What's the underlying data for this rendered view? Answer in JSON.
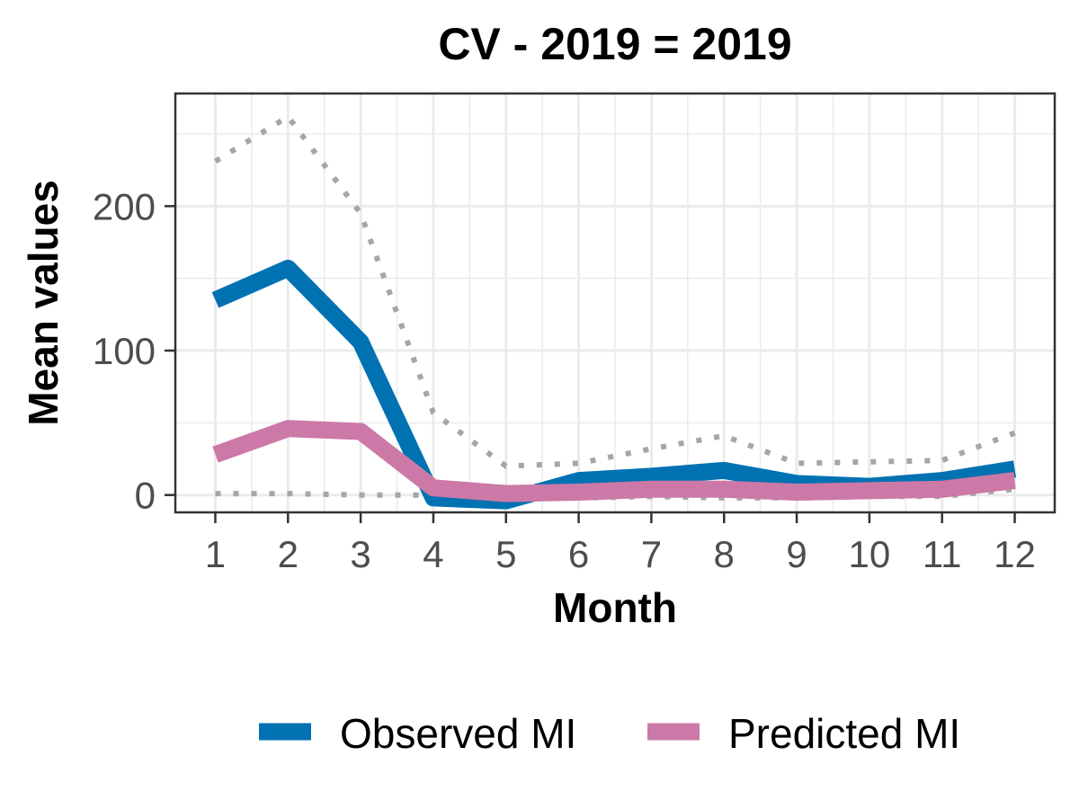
{
  "chart_data": {
    "type": "line",
    "title": "CV - 2019 = 2019",
    "xlabel": "Month",
    "ylabel": "Mean values",
    "x": [
      1,
      2,
      3,
      4,
      5,
      6,
      7,
      8,
      9,
      10,
      11,
      12
    ],
    "x_tick_labels": [
      "1",
      "2",
      "3",
      "4",
      "5",
      "6",
      "7",
      "8",
      "9",
      "10",
      "11",
      "12"
    ],
    "xlim": [
      0.45,
      12.55
    ],
    "ylim": [
      -12,
      278
    ],
    "y_ticks": [
      0,
      100,
      200
    ],
    "y_tick_labels": [
      "0",
      "100",
      "200"
    ],
    "grid": true,
    "legend_position": "bottom",
    "series": [
      {
        "name": "Observed MI",
        "color": "#0072b2",
        "style": "solid",
        "values": [
          135,
          157,
          106,
          -2,
          -4,
          10,
          13,
          17,
          8,
          6,
          10,
          18
        ]
      },
      {
        "name": "Predicted MI",
        "color": "#cc79a7",
        "style": "solid",
        "values": [
          28,
          46,
          44,
          5,
          1,
          2,
          4,
          4,
          2,
          3,
          4,
          10
        ]
      },
      {
        "color": "#a6a6a6",
        "style": "dotted",
        "values": [
          231,
          262,
          195,
          57,
          20,
          22,
          32,
          41,
          22,
          23,
          24,
          43
        ]
      },
      {
        "color": "#a6a6a6",
        "style": "dotted",
        "values": [
          1,
          1,
          0,
          0,
          -2,
          -2,
          -1,
          -2,
          -2,
          -1,
          -1,
          4
        ]
      }
    ]
  }
}
